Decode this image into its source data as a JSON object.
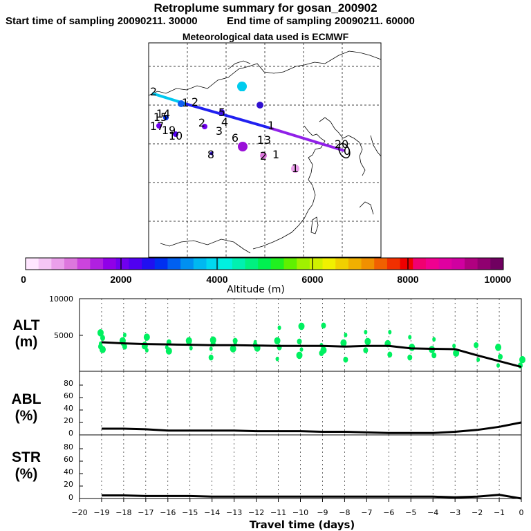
{
  "title": "Retroplume summary for gosan_200902",
  "start_label": "Start time of sampling 20090211. 30000",
  "end_label": "End time of sampling 20090211. 60000",
  "met_label": "Meteorological data used is ECMWF",
  "colorbar": {
    "label": "Altitude (m)",
    "ticks": [
      "0",
      "2000",
      "4000",
      "6000",
      "8000",
      "10000"
    ],
    "colors": [
      "#ffe6ff",
      "#f5c6f5",
      "#eaa0ea",
      "#dd77dd",
      "#cc44dd",
      "#b020e0",
      "#9000e8",
      "#7000f0",
      "#5000f0",
      "#2010f0",
      "#0030f0",
      "#0060f0",
      "#0090f0",
      "#00b8f0",
      "#00d8f0",
      "#00f0e0",
      "#00f0b0",
      "#00f080",
      "#00f050",
      "#20f020",
      "#60f000",
      "#a0f000",
      "#d0f000",
      "#f0f000",
      "#f0d000",
      "#f0b000",
      "#f09000",
      "#f06000",
      "#f03000",
      "#f00000",
      "#f00070",
      "#f00090",
      "#e000a0",
      "#d000a0",
      "#b00080",
      "#900070",
      "#700060"
    ]
  },
  "map": {
    "labels": [
      {
        "t": "1",
        "c": "#00ccee"
      },
      {
        "t": "2",
        "c": "#000000"
      },
      {
        "t": "1",
        "c": "#000000"
      },
      {
        "t": "2",
        "c": "#000000"
      },
      {
        "t": "5",
        "c": "#000000"
      },
      {
        "t": "4",
        "c": "#000000"
      },
      {
        "t": "2",
        "c": "#000000"
      },
      {
        "t": "3",
        "c": "#000000"
      },
      {
        "t": "6",
        "c": "#000000"
      },
      {
        "t": "1",
        "c": "#000000"
      },
      {
        "t": "13",
        "c": "#000000"
      },
      {
        "t": "8",
        "c": "#000000"
      },
      {
        "t": "2",
        "c": "#000000"
      },
      {
        "t": "1",
        "c": "#000000"
      },
      {
        "t": "1",
        "c": "#000000"
      },
      {
        "t": "10",
        "c": "#000000"
      },
      {
        "t": "14",
        "c": "#000000"
      },
      {
        "t": "15",
        "c": "#000000"
      },
      {
        "t": "17",
        "c": "#000000"
      },
      {
        "t": "19",
        "c": "#000000"
      },
      {
        "t": "20",
        "c": "#000000"
      },
      {
        "t": "0",
        "c": "#000000"
      }
    ]
  },
  "chart_data": [
    {
      "type": "scatter",
      "name": "ALT",
      "ylabel": "ALT (m)",
      "xlabel": "Travel time (days)",
      "xlim": [
        -20,
        0
      ],
      "ylim": [
        0,
        10000
      ],
      "yticks": [
        5000,
        10000
      ],
      "mean_line": {
        "x": [
          -19,
          -18,
          -17,
          -16,
          -15,
          -14,
          -13,
          -12,
          -11,
          -10,
          -9,
          -8,
          -7,
          -6,
          -5,
          -4,
          -3,
          -2,
          -1,
          0
        ],
        "y": [
          4000,
          3850,
          3750,
          3700,
          3650,
          3600,
          3600,
          3550,
          3500,
          3500,
          3500,
          3400,
          3500,
          3500,
          3150,
          3100,
          3050,
          2200,
          1400,
          600
        ]
      },
      "points": {
        "x": [
          -19,
          -19,
          -19,
          -19,
          -19,
          -18,
          -18,
          -18,
          -18,
          -17,
          -17,
          -17,
          -17,
          -16,
          -16,
          -16,
          -15,
          -15,
          -15,
          -14,
          -14,
          -14,
          -14,
          -13,
          -13,
          -13,
          -12,
          -12,
          -12,
          -11,
          -11,
          -11,
          -11,
          -10,
          -10,
          -10,
          -10,
          -9,
          -9,
          -9,
          -9,
          -8,
          -8,
          -8,
          -7,
          -7,
          -7,
          -6,
          -6,
          -6,
          -5,
          -5,
          -5,
          -4,
          -4,
          -4,
          -3,
          -3,
          -2,
          -2,
          -1,
          -1,
          -1,
          0,
          0
        ],
        "y": [
          5300,
          4600,
          3800,
          3000,
          3400,
          5000,
          4200,
          3400,
          3800,
          4700,
          3700,
          2900,
          3500,
          4000,
          3300,
          2800,
          3900,
          3200,
          4200,
          3800,
          3100,
          4300,
          1900,
          3900,
          3100,
          4200,
          4000,
          3200,
          3600,
          6000,
          4200,
          3300,
          1700,
          6200,
          4100,
          3000,
          2200,
          6300,
          3600,
          2900,
          2500,
          5000,
          3900,
          1600,
          5400,
          4100,
          2900,
          5400,
          3800,
          2300,
          4700,
          3300,
          1900,
          4400,
          3000,
          2200,
          3500,
          2500,
          3600,
          1600,
          3300,
          2000,
          800,
          1600,
          800
        ]
      }
    },
    {
      "type": "line",
      "name": "ABL",
      "ylabel": "ABL (%)",
      "xlim": [
        -20,
        0
      ],
      "ylim": [
        0,
        100
      ],
      "yticks": [
        0,
        20,
        40,
        60,
        80
      ],
      "x": [
        -19,
        -18,
        -17,
        -16,
        -15,
        -14,
        -13,
        -12,
        -11,
        -10,
        -9,
        -8,
        -7,
        -6,
        -5,
        -4,
        -3,
        -2,
        -1,
        0
      ],
      "y": [
        10,
        10,
        9,
        7,
        7,
        7,
        7,
        6,
        6,
        6,
        5,
        5,
        4,
        3,
        3,
        3,
        5,
        8,
        13,
        20
      ]
    },
    {
      "type": "line",
      "name": "STR",
      "ylabel": "STR (%)",
      "xlim": [
        -20,
        0
      ],
      "ylim": [
        0,
        100
      ],
      "yticks": [
        0,
        20,
        40,
        60,
        80
      ],
      "x": [
        -19,
        -18,
        -17,
        -16,
        -15,
        -14,
        -13,
        -12,
        -11,
        -10,
        -9,
        -8,
        -7,
        -6,
        -5,
        -4,
        -3,
        -2,
        -1,
        0
      ],
      "y": [
        5,
        5,
        4,
        4,
        4,
        3,
        3,
        3,
        3,
        3,
        3,
        3,
        3,
        3,
        3,
        3,
        2,
        3,
        6,
        0
      ]
    }
  ],
  "xticks": [
    "−20",
    "−19",
    "−18",
    "−17",
    "−16",
    "−15",
    "−14",
    "−13",
    "−12",
    "−11",
    "−10",
    "−9",
    "−8",
    "−7",
    "−6",
    "−5",
    "−4",
    "−3",
    "−2",
    "−1",
    "0"
  ],
  "alt_tick_labels": [
    "10000",
    "5000"
  ],
  "abl_tick_labels": [
    "80",
    "60",
    "40",
    "20",
    "0"
  ],
  "str_tick_labels": [
    "80",
    "60",
    "40",
    "20",
    "0"
  ],
  "panel_labels": {
    "alt": [
      "ALT",
      "(m)"
    ],
    "abl": [
      "ABL",
      "(%)"
    ],
    "str": [
      "STR",
      "(%)"
    ],
    "xlabel": "Travel time (days)"
  }
}
